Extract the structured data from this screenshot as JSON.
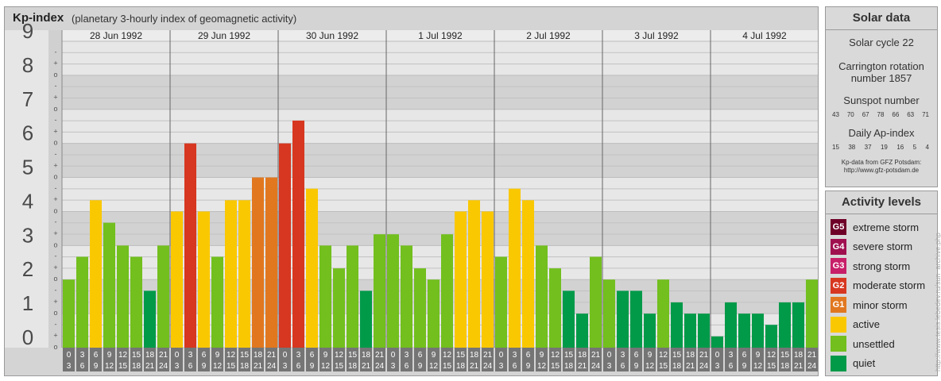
{
  "header": {
    "title": "Kp-index",
    "subtitle": "(planetary 3-hourly index of geomagnetic activity)"
  },
  "colors": {
    "quiet": "#009a49",
    "unsettled": "#72bf1e",
    "active": "#fac800",
    "G1": "#e17820",
    "G2": "#d73720",
    "G3": "#c81f69",
    "G4": "#a0104f",
    "G5": "#6e0027"
  },
  "chart_data": {
    "type": "bar",
    "title": "Kp-index",
    "subtitle": "(planetary 3-hourly index of geomagnetic activity)",
    "ylim": [
      0,
      9
    ],
    "y_ticks": [
      "0",
      "1",
      "2",
      "3",
      "4",
      "5",
      "6",
      "7",
      "8",
      "9"
    ],
    "minor_tick_labels": [
      "o",
      "+",
      "-"
    ],
    "days": [
      "28 Jun 1992",
      "29 Jun 1992",
      "30 Jun 1992",
      "1 Jul 1992",
      "2 Jul 1992",
      "3 Jul 1992",
      "4 Jul 1992"
    ],
    "intervals": [
      [
        "0",
        "3"
      ],
      [
        "3",
        "6"
      ],
      [
        "6",
        "9"
      ],
      [
        "9",
        "12"
      ],
      [
        "12",
        "15"
      ],
      [
        "15",
        "18"
      ],
      [
        "18",
        "21"
      ],
      [
        "21",
        "24"
      ]
    ],
    "values": [
      [
        2.0,
        2.67,
        4.33,
        3.67,
        3.0,
        2.67,
        1.67,
        3.0
      ],
      [
        4.0,
        6.0,
        4.0,
        2.67,
        4.33,
        4.33,
        5.0,
        5.0
      ],
      [
        6.0,
        6.67,
        4.67,
        3.0,
        2.33,
        3.0,
        1.67,
        3.33
      ],
      [
        3.33,
        3.0,
        2.33,
        2.0,
        3.33,
        4.0,
        4.33,
        4.0
      ],
      [
        2.67,
        4.67,
        4.33,
        3.0,
        2.33,
        1.67,
        1.0,
        2.67
      ],
      [
        2.0,
        1.67,
        1.67,
        1.0,
        2.0,
        1.33,
        1.0,
        1.0
      ],
      [
        0.33,
        1.33,
        1.0,
        1.0,
        0.67,
        1.33,
        1.33,
        2.0
      ]
    ]
  },
  "solar": {
    "title": "Solar data",
    "cycle": "Solar cycle 22",
    "carrington_line1": "Carrington rotation",
    "carrington_line2": "number 1857",
    "sunspot_label": "Sunspot number",
    "sunspot_values": [
      "43",
      "70",
      "67",
      "78",
      "66",
      "63",
      "71"
    ],
    "ap_label": "Daily Ap-index",
    "ap_values": [
      "15",
      "38",
      "37",
      "19",
      "16",
      "5",
      "4"
    ],
    "source_line1": "Kp-data from GFZ Potsdam:",
    "source_line2": "http://www.gfz-potsdam.de"
  },
  "activity": {
    "title": "Activity levels",
    "levels": [
      {
        "code": "G5",
        "label": "extreme storm",
        "color": "#6e0027"
      },
      {
        "code": "G4",
        "label": "severe storm",
        "color": "#a0104f"
      },
      {
        "code": "G3",
        "label": "strong storm",
        "color": "#c81f69"
      },
      {
        "code": "G2",
        "label": "moderate storm",
        "color": "#d73720"
      },
      {
        "code": "G1",
        "label": "minor storm",
        "color": "#e17820"
      },
      {
        "code": "",
        "label": "active",
        "color": "#fac800"
      },
      {
        "code": "",
        "label": "unsettled",
        "color": "#72bf1e"
      },
      {
        "code": "",
        "label": "quiet",
        "color": "#009a49"
      }
    ]
  },
  "credit": "http://www.tesis.lebedev.ru/sun_archive.php"
}
